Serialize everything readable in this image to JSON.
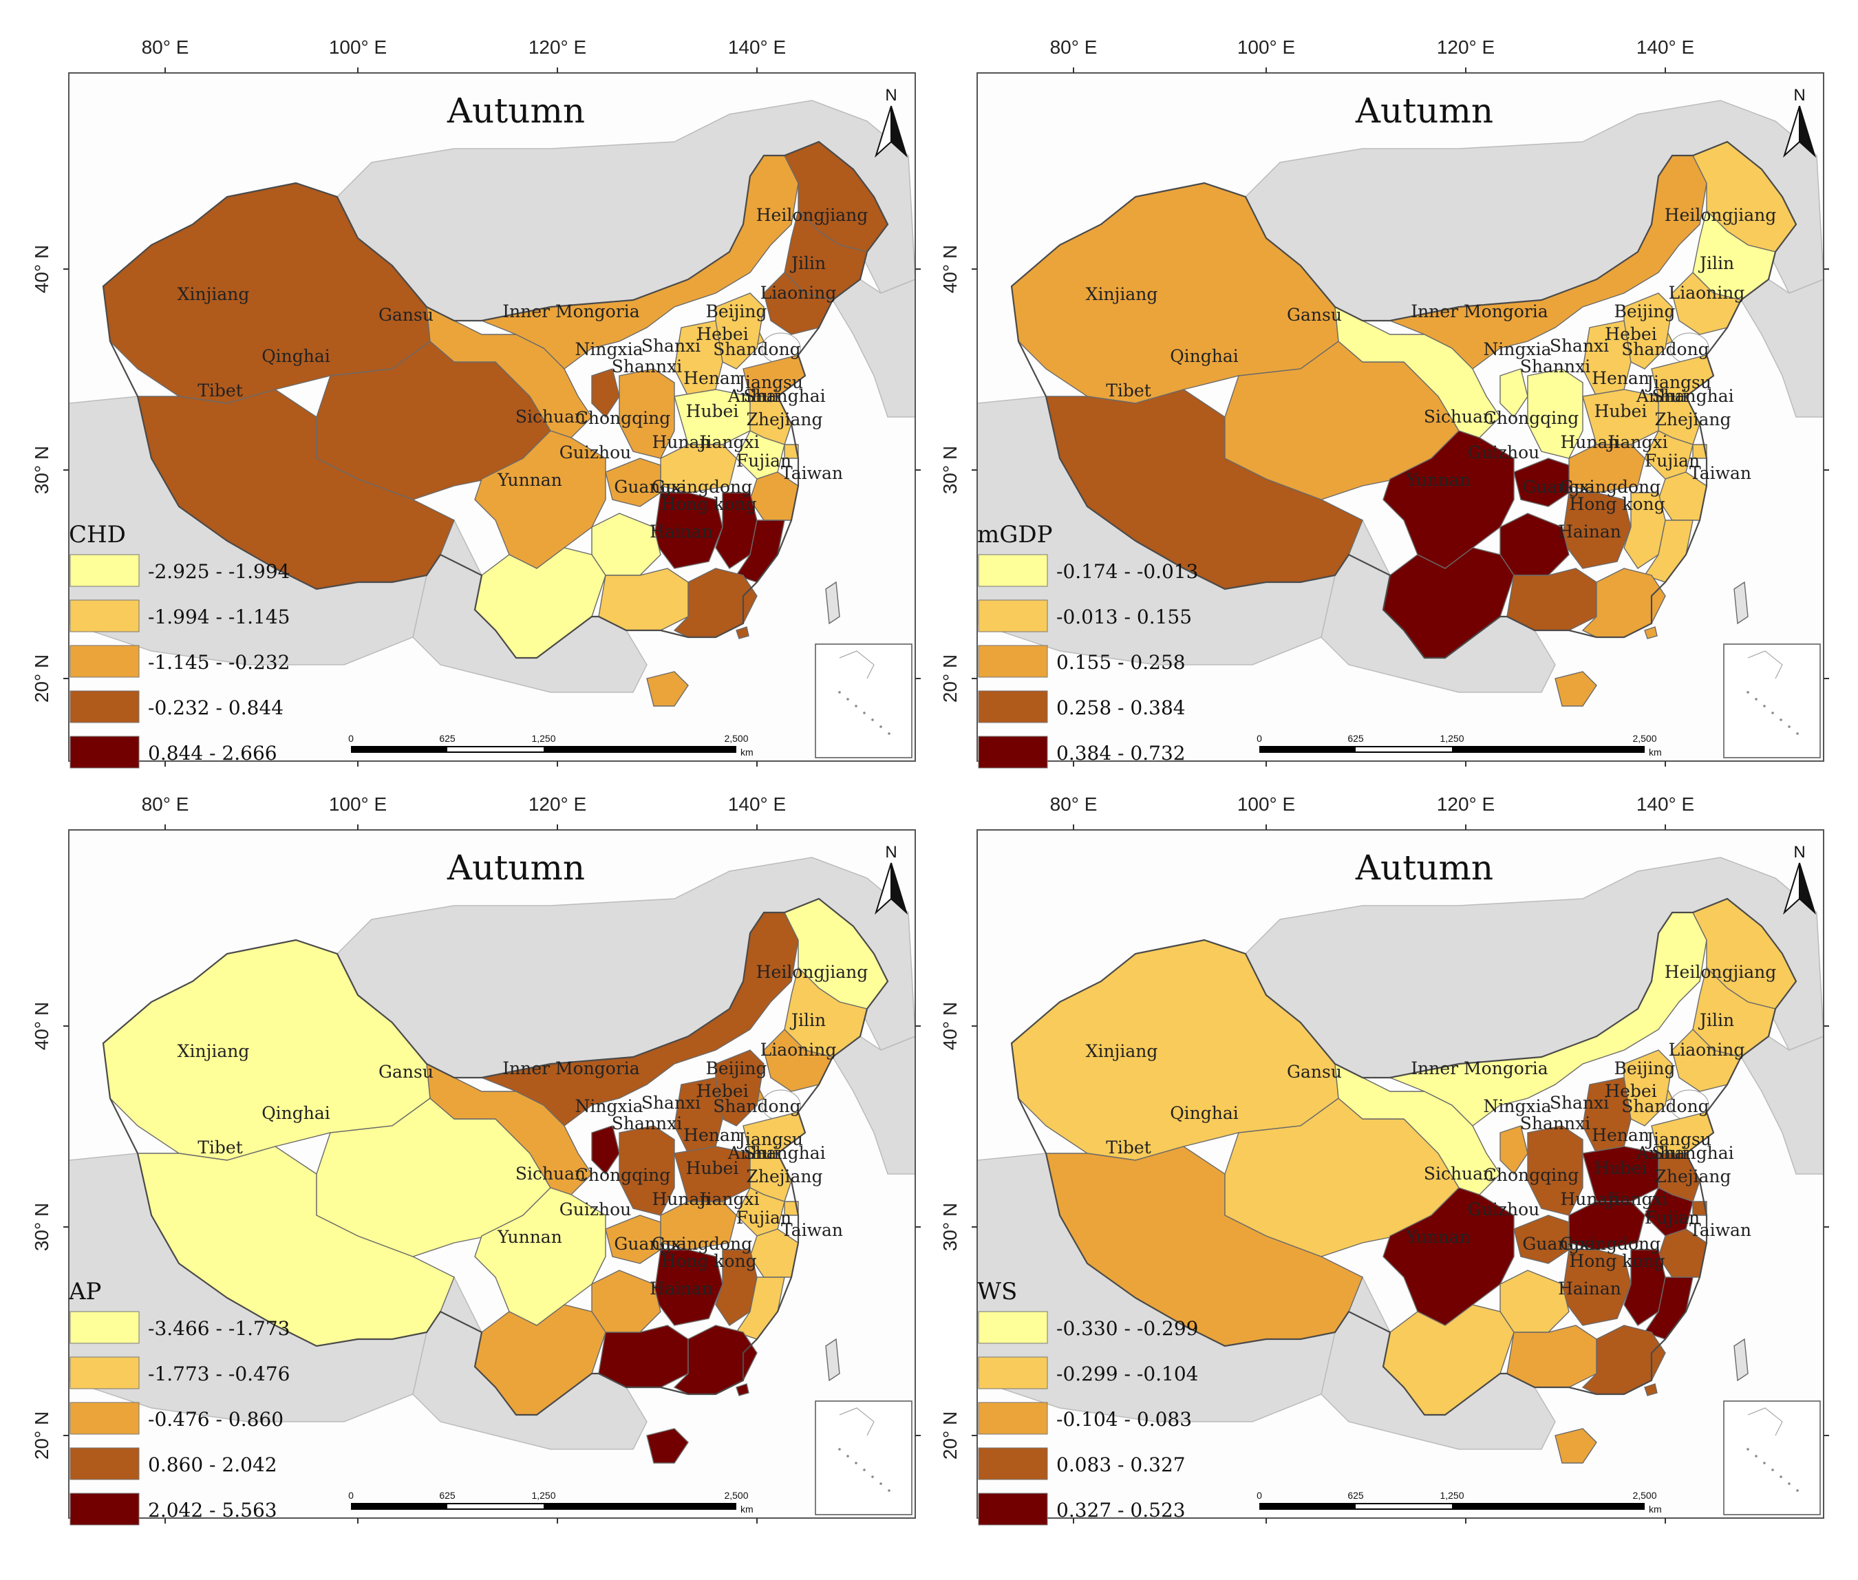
{
  "axes": {
    "lon_labels": [
      "80° E",
      "100° E",
      "120° E",
      "140° E"
    ],
    "lat_labels": [
      "40° N",
      "30° N",
      "20° N"
    ]
  },
  "north_label": "N",
  "scalebar": {
    "ticks": [
      "0",
      "625",
      "1,250",
      "2,500"
    ],
    "unit": "km"
  },
  "panels": [
    {
      "title": "Autumn",
      "variable": "CHD",
      "classes": [
        {
          "label": "-2.925 - -1.994",
          "color": "#ffff99"
        },
        {
          "label": "-1.994 - -1.145",
          "color": "#f8cb5a"
        },
        {
          "label": "-1.145 - -0.232",
          "color": "#eba43a"
        },
        {
          "label": "-0.232 - 0.844",
          "color": "#b05a1c"
        },
        {
          "label": "0.844 - 2.666",
          "color": "#720000"
        }
      ],
      "provinces": {
        "Xinjiang": 4,
        "Tibet": 4,
        "Qinghai": 4,
        "Gansu": 3,
        "Inner Mongoria": 3,
        "Ningxia": 4,
        "Shannxi": 3,
        "Sichuan": 3,
        "Chongqing": 3,
        "Yunnan": 1,
        "Guizhou": 1,
        "Guangxi": 2,
        "Guangdong": 4,
        "Hong kong": 4,
        "Hainan": 3,
        "Hunan": 5,
        "Jiangxi": 5,
        "Fujian": 5,
        "Zhejiang": 3,
        "Hubei": 2,
        "Henan": 1,
        "Anhui": 1,
        "Jiangsu": 2,
        "Shanghai": 2,
        "Shandong": 3,
        "Shanxi": 2,
        "Hebei": 2,
        "Beijing": 2,
        "Liaoning": 4,
        "Jilin": 4,
        "Heilongjiang": 4,
        "Taiwan": 0
      }
    },
    {
      "title": "Autumn",
      "variable": "mGDP",
      "classes": [
        {
          "label": "-0.174 - -0.013",
          "color": "#ffff99"
        },
        {
          "label": "-0.013 - 0.155",
          "color": "#f8cb5a"
        },
        {
          "label": "0.155 - 0.258",
          "color": "#eba43a"
        },
        {
          "label": "0.258 - 0.384",
          "color": "#b05a1c"
        },
        {
          "label": "0.384 - 0.732",
          "color": "#720000"
        }
      ],
      "provinces": {
        "Xinjiang": 3,
        "Tibet": 4,
        "Qinghai": 3,
        "Gansu": 1,
        "Inner Mongoria": 3,
        "Ningxia": 1,
        "Shannxi": 1,
        "Sichuan": 5,
        "Chongqing": 5,
        "Yunnan": 5,
        "Guizhou": 5,
        "Guangxi": 4,
        "Guangdong": 3,
        "Hong kong": 3,
        "Hainan": 3,
        "Hunan": 4,
        "Jiangxi": 2,
        "Fujian": 2,
        "Zhejiang": 2,
        "Hubei": 3,
        "Henan": 2,
        "Anhui": 2,
        "Jiangsu": 2,
        "Shanghai": 2,
        "Shandong": 2,
        "Shanxi": 2,
        "Hebei": 2,
        "Beijing": 2,
        "Liaoning": 2,
        "Jilin": 1,
        "Heilongjiang": 2,
        "Taiwan": 0
      }
    },
    {
      "title": "Autumn",
      "variable": "AP",
      "classes": [
        {
          "label": "-3.466 - -1.773",
          "color": "#ffff99"
        },
        {
          "label": "-1.773 - -0.476",
          "color": "#f8cb5a"
        },
        {
          "label": "-0.476 - 0.860",
          "color": "#eba43a"
        },
        {
          "label": "0.860 - 2.042",
          "color": "#b05a1c"
        },
        {
          "label": "2.042 - 5.563",
          "color": "#720000"
        }
      ],
      "provinces": {
        "Xinjiang": 1,
        "Tibet": 1,
        "Qinghai": 1,
        "Gansu": 3,
        "Inner Mongoria": 4,
        "Ningxia": 5,
        "Shannxi": 4,
        "Sichuan": 1,
        "Chongqing": 3,
        "Yunnan": 3,
        "Guizhou": 3,
        "Guangxi": 5,
        "Guangdong": 5,
        "Hong kong": 5,
        "Hainan": 5,
        "Hunan": 5,
        "Jiangxi": 4,
        "Fujian": 2,
        "Zhejiang": 2,
        "Hubei": 3,
        "Henan": 4,
        "Anhui": 2,
        "Jiangsu": 2,
        "Shanghai": 2,
        "Shandong": 2,
        "Shanxi": 4,
        "Hebei": 4,
        "Beijing": 3,
        "Liaoning": 3,
        "Jilin": 2,
        "Heilongjiang": 1,
        "Taiwan": 0
      }
    },
    {
      "title": "Autumn",
      "variable": "WS",
      "classes": [
        {
          "label": "-0.330 - -0.299",
          "color": "#ffff99"
        },
        {
          "label": "-0.299 - -0.104",
          "color": "#f8cb5a"
        },
        {
          "label": "-0.104 - 0.083",
          "color": "#eba43a"
        },
        {
          "label": "0.083 - 0.327",
          "color": "#b05a1c"
        },
        {
          "label": "0.327 - 0.523",
          "color": "#720000"
        }
      ],
      "provinces": {
        "Xinjiang": 2,
        "Tibet": 3,
        "Qinghai": 2,
        "Gansu": 1,
        "Inner Mongoria": 1,
        "Ningxia": 3,
        "Shannxi": 4,
        "Sichuan": 5,
        "Chongqing": 4,
        "Yunnan": 2,
        "Guizhou": 2,
        "Guangxi": 3,
        "Guangdong": 4,
        "Hong kong": 4,
        "Hainan": 3,
        "Hunan": 4,
        "Jiangxi": 5,
        "Fujian": 5,
        "Zhejiang": 4,
        "Hubei": 5,
        "Henan": 5,
        "Anhui": 5,
        "Jiangsu": 4,
        "Shanghai": 4,
        "Shandong": 2,
        "Shanxi": 4,
        "Hebei": 2,
        "Beijing": 2,
        "Liaoning": 2,
        "Jilin": 2,
        "Heilongjiang": 2,
        "Taiwan": 0
      }
    }
  ]
}
